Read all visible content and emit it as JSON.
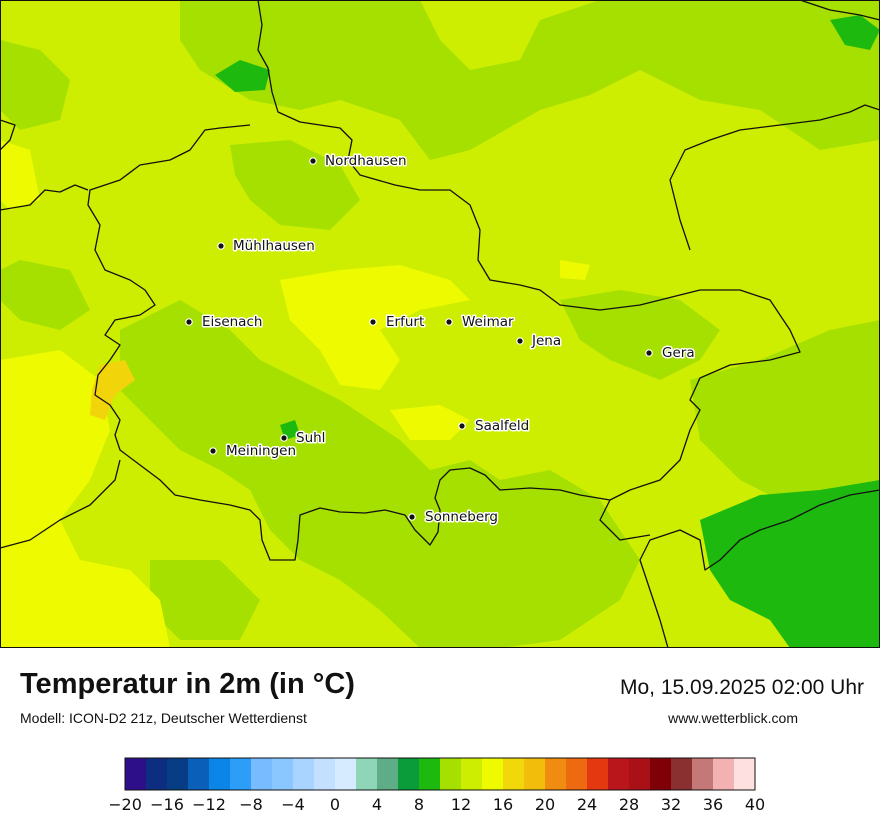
{
  "title": "Temperatur in 2m (in °C)",
  "model": "Modell: ICON-D2 21z, Deutscher Wetterdienst",
  "datetime": "Mo, 15.09.2025 02:00 Uhr",
  "website": "www.wetterblick.com",
  "colors": {
    "base": "#cdee00",
    "mid_green": "#a6e000",
    "dark_green": "#1db90f",
    "yellow": "#eefb00",
    "orange_spot": "#f2d40a",
    "border": "#111111"
  },
  "cities": [
    {
      "name": "Nordhausen"
    },
    {
      "name": "Mühlhausen"
    },
    {
      "name": "Eisenach"
    },
    {
      "name": "Erfurt"
    },
    {
      "name": "Weimar"
    },
    {
      "name": "Jena"
    },
    {
      "name": "Gera"
    },
    {
      "name": "Suhl"
    },
    {
      "name": "Meiningen"
    },
    {
      "name": "Saalfeld"
    },
    {
      "name": "Sonneberg"
    }
  ],
  "color_scale": {
    "unit": "°C",
    "min": -20,
    "max": 40,
    "step": 2,
    "tick_labels": [
      "−20",
      "−16",
      "−12",
      "−8",
      "−4",
      "0",
      "4",
      "8",
      "12",
      "16",
      "20",
      "24",
      "28",
      "32",
      "36",
      "40"
    ],
    "colors": [
      "#2e0f8a",
      "#0c2d80",
      "#063d84",
      "#0a5fb8",
      "#0b86e8",
      "#2c9ef7",
      "#78bbff",
      "#8ac6ff",
      "#a8d4ff",
      "#c3e0ff",
      "#d6ebff",
      "#8fd6b8",
      "#5fad86",
      "#0a9b3a",
      "#1db90f",
      "#a6e000",
      "#cdee00",
      "#eefb00",
      "#f0d80a",
      "#f2be0b",
      "#f08c10",
      "#ee6a10",
      "#e43810",
      "#b8161a",
      "#a91018",
      "#800008",
      "#8b3030",
      "#c47878",
      "#f2b2b2",
      "#ffe0e0"
    ]
  }
}
